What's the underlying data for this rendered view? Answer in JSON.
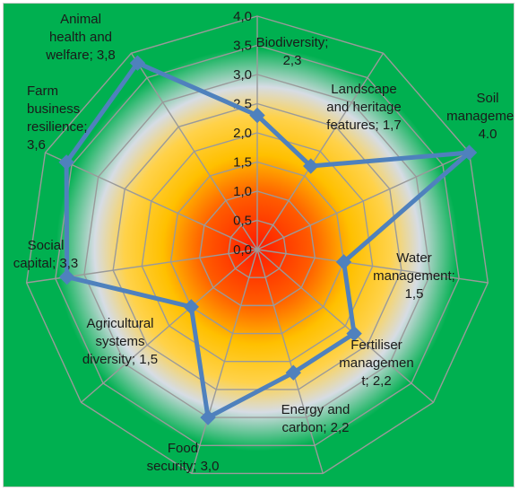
{
  "chart_data": {
    "type": "radar",
    "title": "",
    "rlim": [
      0,
      4
    ],
    "ticks": [
      "0,0",
      "0,5",
      "1,0",
      "1,5",
      "2,0",
      "2,5",
      "3,0",
      "3,5",
      "4,0"
    ],
    "grid": true,
    "legend": "none",
    "categories": [
      "Biodiversity",
      "Landscape and heritage features",
      "Soil management",
      "Water management",
      "Fertiliser management",
      "Energy and carbon",
      "Food security",
      "Agricultural systems diversity",
      "Social capital",
      "Farm business resilience",
      "Animal health and welfare"
    ],
    "values": [
      2.3,
      1.7,
      4.0,
      1.5,
      2.2,
      2.2,
      3.0,
      1.5,
      3.3,
      3.6,
      3.8
    ],
    "data_labels": [
      [
        "Biodiversity;",
        "2,3"
      ],
      [
        "Landscape",
        "and heritage",
        "features; 1,7"
      ],
      [
        "Soil",
        "management,",
        "4.0"
      ],
      [
        "Water",
        "management;",
        "1,5"
      ],
      [
        "Fertiliser",
        "managemen",
        "t; 2,2"
      ],
      [
        "Energy and",
        "carbon; 2,2"
      ],
      [
        "Food",
        "security; 3,0"
      ],
      [
        "Agricultural",
        "systems",
        "diversity; 1,5"
      ],
      [
        "Social",
        "capital; 3,3"
      ],
      [
        "Farm",
        "business",
        "resilience;",
        "3,6"
      ],
      [
        "Animal",
        "health and",
        "welfare; 3,8"
      ]
    ],
    "colors": {
      "series": "#4f81bd",
      "grid": "#9a9a9a",
      "center": "#ff1a00",
      "mid": "#ffc000",
      "light": "#d6dce4",
      "outer": "#00b050"
    }
  }
}
